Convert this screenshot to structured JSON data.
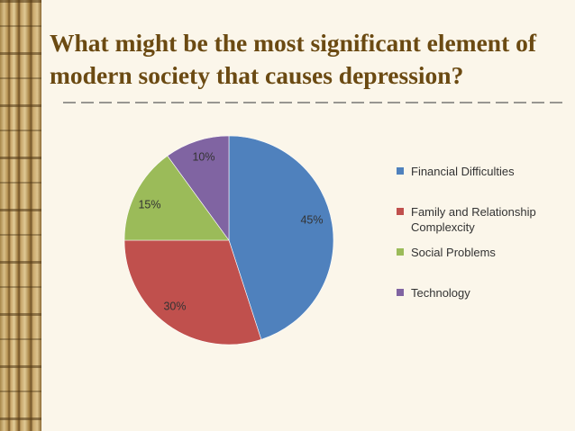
{
  "slide": {
    "title": "What might be the most significant element of modern society that causes depression?"
  },
  "chart_data": {
    "type": "pie",
    "title": "",
    "categories": [
      "Financial Difficulties",
      "Family and Relationship Complexcity",
      "Social Problems",
      "Technology"
    ],
    "values": [
      45,
      30,
      15,
      10
    ],
    "data_labels": [
      "45%",
      "30%",
      "15%",
      "10%"
    ],
    "colors": [
      "#4f81bd",
      "#c0504d",
      "#9bbb59",
      "#8064a2"
    ],
    "legend_position": "right",
    "start_angle": "12 o'clock, clockwise"
  },
  "theme": {
    "title_color": "#6b4a12",
    "background": "#fbf6ea"
  }
}
